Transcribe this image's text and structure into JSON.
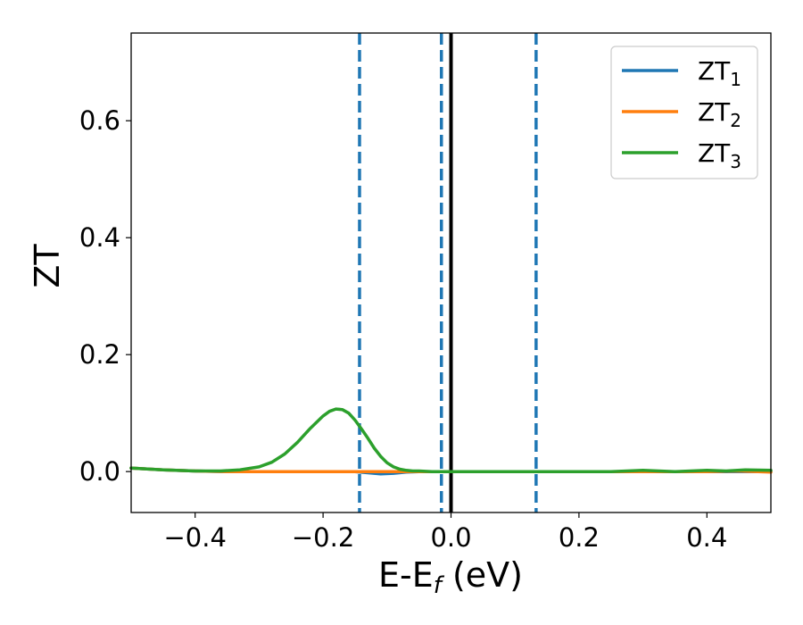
{
  "chart_data": {
    "type": "line",
    "xlabel_main": "E-E",
    "xlabel_sub": "f",
    "xlabel_tail": " (eV)",
    "ylabel": "ZT",
    "xlim": [
      -0.5,
      0.5
    ],
    "ylim": [
      -0.07,
      0.75
    ],
    "x_ticks": [
      -0.4,
      -0.2,
      0.0,
      0.2,
      0.4
    ],
    "x_tick_labels": [
      "−0.4",
      "−0.2",
      "0.0",
      "0.2",
      "0.4"
    ],
    "y_ticks": [
      0.0,
      0.2,
      0.4,
      0.6
    ],
    "y_tick_labels": [
      "0.0",
      "0.2",
      "0.4",
      "0.6"
    ],
    "grid": false,
    "legend_position": "top-right",
    "vlines": [
      {
        "x": 0.0,
        "style": "solid",
        "color": "#000000"
      },
      {
        "x": -0.143,
        "style": "dashed",
        "color": "#1f77b4"
      },
      {
        "x": -0.015,
        "style": "dashed",
        "color": "#1f77b4"
      },
      {
        "x": 0.133,
        "style": "dashed",
        "color": "#1f77b4"
      }
    ],
    "series": [
      {
        "name_main": "ZT",
        "name_sub": "1",
        "color": "#1f77b4",
        "x": [
          -0.5,
          -0.45,
          -0.4,
          -0.35,
          -0.3,
          -0.25,
          -0.2,
          -0.15,
          -0.13,
          -0.11,
          -0.09,
          -0.07,
          -0.05,
          0.0,
          0.1,
          0.2,
          0.3,
          0.4,
          0.5
        ],
        "y": [
          0.006,
          0.003,
          0.001,
          0.0,
          0.0,
          0.0,
          0.0,
          0.0,
          -0.002,
          -0.004,
          -0.003,
          -0.001,
          0.0,
          0.0,
          0.0,
          0.0,
          0.0,
          0.0,
          0.0
        ]
      },
      {
        "name_main": "ZT",
        "name_sub": "2",
        "color": "#ff7f0e",
        "x": [
          -0.5,
          -0.45,
          -0.4,
          -0.35,
          -0.3,
          -0.2,
          -0.1,
          0.0,
          0.1,
          0.2,
          0.3,
          0.4,
          0.45,
          0.5
        ],
        "y": [
          0.006,
          0.003,
          0.001,
          0.0,
          0.0,
          0.0,
          0.0,
          0.0,
          0.0,
          0.0,
          0.0,
          0.0,
          0.001,
          -0.001
        ]
      },
      {
        "name_main": "ZT",
        "name_sub": "3",
        "color": "#2ca02c",
        "x": [
          -0.5,
          -0.45,
          -0.4,
          -0.36,
          -0.33,
          -0.3,
          -0.28,
          -0.26,
          -0.24,
          -0.22,
          -0.2,
          -0.19,
          -0.18,
          -0.17,
          -0.16,
          -0.15,
          -0.14,
          -0.13,
          -0.12,
          -0.11,
          -0.1,
          -0.09,
          -0.08,
          -0.07,
          -0.06,
          -0.05,
          -0.03,
          0.0,
          0.05,
          0.1,
          0.15,
          0.2,
          0.25,
          0.3,
          0.35,
          0.4,
          0.43,
          0.46,
          0.5
        ],
        "y": [
          0.006,
          0.003,
          0.001,
          0.001,
          0.003,
          0.008,
          0.016,
          0.03,
          0.05,
          0.074,
          0.095,
          0.103,
          0.107,
          0.106,
          0.1,
          0.088,
          0.073,
          0.057,
          0.04,
          0.026,
          0.015,
          0.008,
          0.004,
          0.002,
          0.001,
          0.001,
          0.0,
          0.0,
          0.0,
          0.0,
          0.0,
          0.0,
          0.0,
          0.002,
          0.0,
          0.002,
          0.001,
          0.003,
          0.002
        ]
      }
    ]
  }
}
